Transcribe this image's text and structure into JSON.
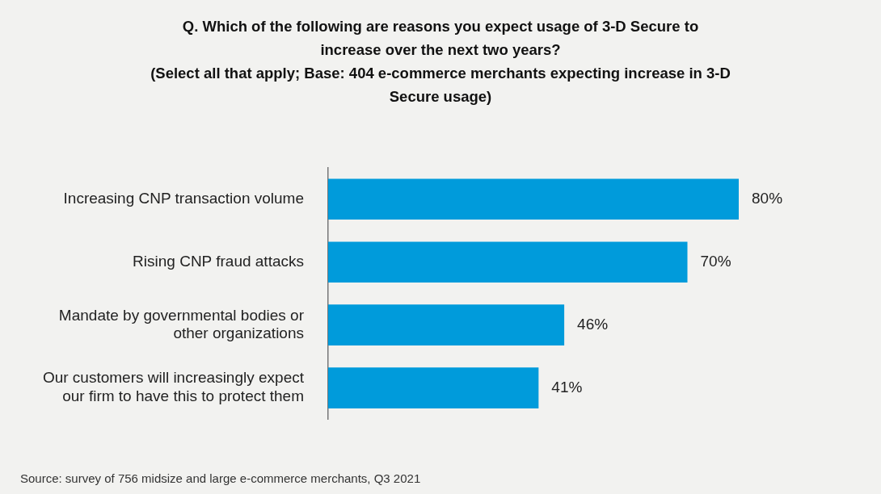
{
  "chart_data": {
    "type": "bar",
    "orientation": "horizontal",
    "title": "Q. Which of the following are reasons you expect usage of 3-D Secure to increase over the next two years?",
    "subtitle": "(Select all that apply; Base: 404 e-commerce merchants expecting increase in 3-D Secure usage)",
    "categories": [
      "Increasing CNP transaction volume",
      "Rising CNP fraud attacks",
      "Mandate by governmental bodies or other organizations",
      "Our customers will increasingly expect our firm to have this to protect them"
    ],
    "values": [
      80,
      70,
      46,
      41
    ],
    "value_labels": [
      "80%",
      "70%",
      "46%",
      "41%"
    ],
    "color": "#009bdb",
    "tick_labels": "y",
    "grid": false,
    "legend": false,
    "annotations": [
      "Source: survey of 756 midsize and large e-commerce merchants, Q3 2021"
    ]
  }
}
